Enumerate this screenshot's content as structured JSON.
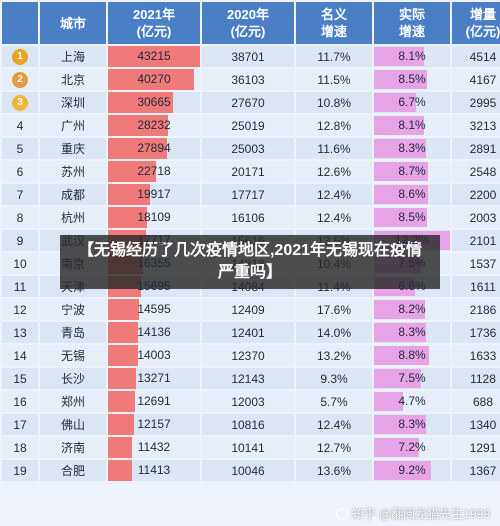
{
  "headers": {
    "rank": "",
    "city": "城市",
    "v2021": "2021年\n(亿元)",
    "v2020": "2020年\n(亿元)",
    "nominal": "名义\n增速",
    "real": "实际\n增速",
    "increase": "增量\n(亿元)"
  },
  "colors": {
    "header_bg": "#4a7fc6",
    "bar_2021": "#f07a7a",
    "bar_real": "#e6a3e6",
    "gold": "#e9a327",
    "silver": "#e39b3e",
    "bronze": "#f0b53a"
  },
  "rows": [
    {
      "rank": "1",
      "medal": "gold",
      "city": "上海",
      "v2021": "43215",
      "v2020": "38701",
      "nominal": "11.7%",
      "real": "8.1%",
      "increase": "4514"
    },
    {
      "rank": "2",
      "medal": "silver",
      "city": "北京",
      "v2021": "40270",
      "v2020": "36103",
      "nominal": "11.5%",
      "real": "8.5%",
      "increase": "4167"
    },
    {
      "rank": "3",
      "medal": "bronze",
      "city": "深圳",
      "v2021": "30665",
      "v2020": "27670",
      "nominal": "10.8%",
      "real": "6.7%",
      "increase": "2995"
    },
    {
      "rank": "4",
      "medal": "",
      "city": "广州",
      "v2021": "28232",
      "v2020": "25019",
      "nominal": "12.8%",
      "real": "8.1%",
      "increase": "3213"
    },
    {
      "rank": "5",
      "medal": "",
      "city": "重庆",
      "v2021": "27894",
      "v2020": "25003",
      "nominal": "11.6%",
      "real": "8.3%",
      "increase": "2891"
    },
    {
      "rank": "6",
      "medal": "",
      "city": "苏州",
      "v2021": "22718",
      "v2020": "20171",
      "nominal": "12.6%",
      "real": "8.7%",
      "increase": "2548"
    },
    {
      "rank": "7",
      "medal": "",
      "city": "成都",
      "v2021": "19917",
      "v2020": "17717",
      "nominal": "12.4%",
      "real": "8.6%",
      "increase": "2200"
    },
    {
      "rank": "8",
      "medal": "",
      "city": "杭州",
      "v2021": "18109",
      "v2020": "16106",
      "nominal": "12.4%",
      "real": "8.5%",
      "increase": "2003"
    },
    {
      "rank": "9",
      "medal": "",
      "city": "武汉",
      "v2021": "17717",
      "v2020": "15616",
      "nominal": "13.5%",
      "real": "12.2%",
      "increase": "2101"
    },
    {
      "rank": "10",
      "medal": "",
      "city": "南京",
      "v2021": "16355",
      "v2020": "14818",
      "nominal": "10.4%",
      "real": "7.5%",
      "increase": "1537"
    },
    {
      "rank": "11",
      "medal": "",
      "city": "天津",
      "v2021": "15695",
      "v2020": "14084",
      "nominal": "11.4%",
      "real": "6.6%",
      "increase": "1611"
    },
    {
      "rank": "12",
      "medal": "",
      "city": "宁波",
      "v2021": "14595",
      "v2020": "12409",
      "nominal": "17.6%",
      "real": "8.2%",
      "increase": "2186"
    },
    {
      "rank": "13",
      "medal": "",
      "city": "青岛",
      "v2021": "14136",
      "v2020": "12401",
      "nominal": "14.0%",
      "real": "8.3%",
      "increase": "1736"
    },
    {
      "rank": "14",
      "medal": "",
      "city": "无锡",
      "v2021": "14003",
      "v2020": "12370",
      "nominal": "13.2%",
      "real": "8.8%",
      "increase": "1633"
    },
    {
      "rank": "15",
      "medal": "",
      "city": "长沙",
      "v2021": "13271",
      "v2020": "12143",
      "nominal": "9.3%",
      "real": "7.5%",
      "increase": "1128"
    },
    {
      "rank": "16",
      "medal": "",
      "city": "郑州",
      "v2021": "12691",
      "v2020": "12003",
      "nominal": "5.7%",
      "real": "4.7%",
      "increase": "688"
    },
    {
      "rank": "17",
      "medal": "",
      "city": "佛山",
      "v2021": "12157",
      "v2020": "10816",
      "nominal": "12.4%",
      "real": "8.3%",
      "increase": "1340"
    },
    {
      "rank": "18",
      "medal": "",
      "city": "济南",
      "v2021": "11432",
      "v2020": "10141",
      "nominal": "12.7%",
      "real": "7.2%",
      "increase": "1291"
    },
    {
      "rank": "19",
      "medal": "",
      "city": "合肥",
      "v2021": "11413",
      "v2020": "10046",
      "nominal": "13.6%",
      "real": "9.2%",
      "increase": "1367"
    }
  ],
  "overlay": {
    "text": "【无锡经历了几次疫情地区,2021年无锡现在疫情严重吗】"
  },
  "watermark": {
    "text": "知乎 @翻阅龙猫先生1999"
  }
}
